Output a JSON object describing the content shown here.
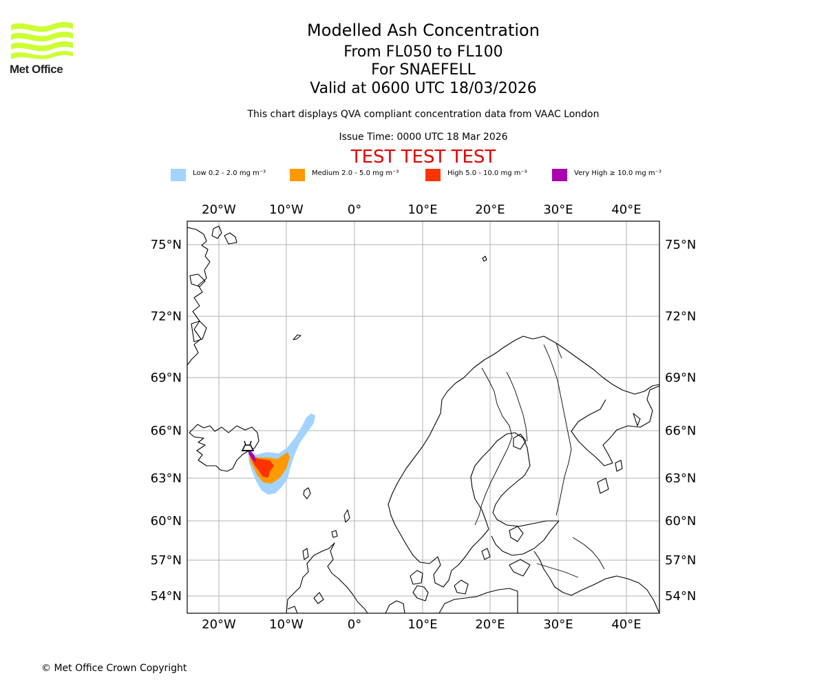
{
  "logo": {
    "text": "Met Office",
    "color": "#ccff33"
  },
  "title": {
    "main": "Modelled Ash Concentration",
    "levels": "From FL050 to FL100",
    "volcano": "For SNAEFELL",
    "valid": "Valid at 0600 UTC 18/03/2026"
  },
  "subtitle": "This chart displays QVA compliant concentration data from VAAC London",
  "issue_time": "Issue Time: 0000 UTC 18 Mar 2026",
  "test_banner": "TEST TEST TEST",
  "legend": [
    {
      "label": "Low 0.2 - 2.0 mg m⁻³",
      "color": "#a3d3ff"
    },
    {
      "label": "Medium 2.0 - 5.0 mg m⁻³",
      "color": "#ff9900"
    },
    {
      "label": "High 5.0 - 10.0 mg m⁻³",
      "color": "#ff3300"
    },
    {
      "label": "Very High  ≥  10.0 mg m⁻³",
      "color": "#aa00b0"
    }
  ],
  "map": {
    "lon_ticks": [
      "20°W",
      "10°W",
      "0°",
      "10°E",
      "20°E",
      "30°E",
      "40°E"
    ],
    "lat_ticks": [
      "75°N",
      "72°N",
      "69°N",
      "66°N",
      "63°N",
      "60°N",
      "57°N",
      "54°N"
    ],
    "volcano_marker": "volcano-symbol"
  },
  "copyright": "© Met Office Crown Copyright"
}
